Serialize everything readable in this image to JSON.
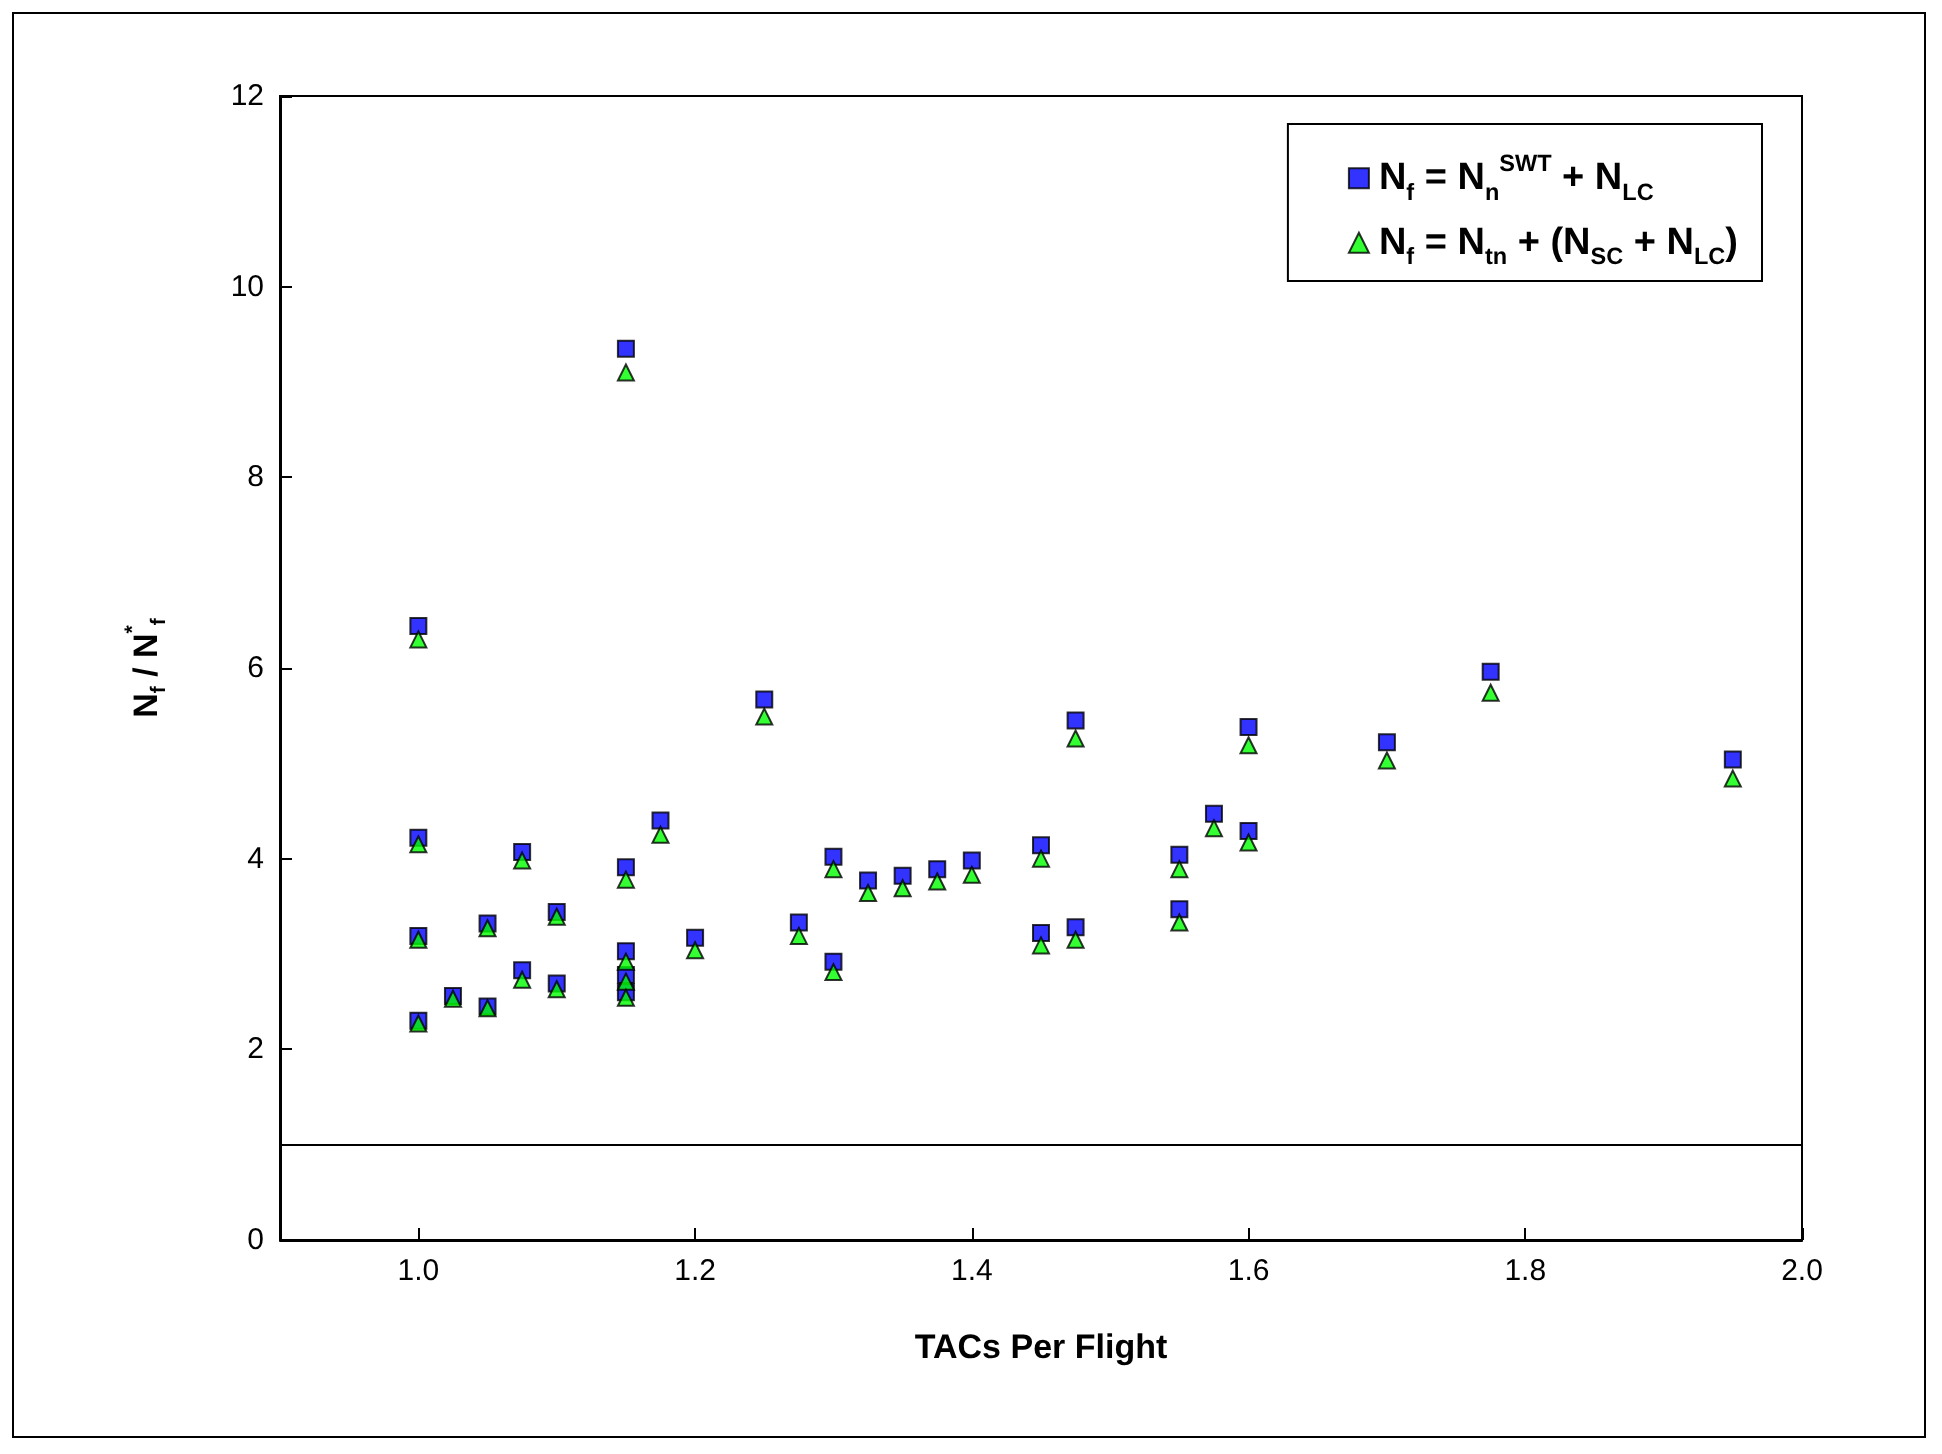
{
  "chart_data": {
    "type": "scatter",
    "xlabel": "TACs Per Flight",
    "ylabel": "N$_{f}$ / N$^{*}$$_{f}$",
    "xlim": [
      0.9,
      2.0
    ],
    "xticks": [
      {
        "value": 1.0,
        "label": "1.0"
      },
      {
        "value": 1.2,
        "label": "1.2"
      },
      {
        "value": 1.4,
        "label": "1.4"
      },
      {
        "value": 1.6,
        "label": "1.6"
      },
      {
        "value": 1.8,
        "label": "1.8"
      },
      {
        "value": 2.0,
        "label": "2.0"
      }
    ],
    "ylim": [
      0,
      12
    ],
    "yticks": [
      0,
      2,
      4,
      6,
      8,
      10,
      12
    ],
    "x": [
      1.0,
      1.0,
      1.0,
      1.0,
      1.025,
      1.05,
      1.05,
      1.075,
      1.075,
      1.1,
      1.1,
      1.15,
      1.15,
      1.15,
      1.15,
      1.15,
      1.175,
      1.2,
      1.25,
      1.275,
      1.3,
      1.3,
      1.325,
      1.35,
      1.375,
      1.4,
      1.45,
      1.45,
      1.475,
      1.475,
      1.55,
      1.55,
      1.575,
      1.6,
      1.6,
      1.7,
      1.775,
      1.95
    ],
    "series": [
      {
        "name": "N$_{f}$ = N$_{n}$$^{SWT}$ + N$_{LC}$",
        "color": "#0000ff",
        "marker": "square",
        "values": [
          6.44,
          4.22,
          3.19,
          2.3,
          2.56,
          3.32,
          2.45,
          4.07,
          2.83,
          3.44,
          2.69,
          9.35,
          3.91,
          3.03,
          2.78,
          2.6,
          4.4,
          3.17,
          5.67,
          3.33,
          4.02,
          2.92,
          3.77,
          3.82,
          3.89,
          3.98,
          4.14,
          3.22,
          5.45,
          3.28,
          4.04,
          3.47,
          4.47,
          5.38,
          4.29,
          5.22,
          5.96,
          5.04
        ]
      },
      {
        "name": "N$_{f}$ = N$_{tn}$ + (N$_{SC}$ + N$_{LC}$)",
        "color": "#00ff00",
        "marker": "triangle",
        "values": [
          6.3,
          4.15,
          3.15,
          2.27,
          2.53,
          3.27,
          2.43,
          3.98,
          2.73,
          3.39,
          2.63,
          9.1,
          3.78,
          2.92,
          2.71,
          2.54,
          4.25,
          3.04,
          5.49,
          3.19,
          3.89,
          2.81,
          3.64,
          3.69,
          3.76,
          3.83,
          4.0,
          3.09,
          5.26,
          3.15,
          3.89,
          3.33,
          4.32,
          5.19,
          4.17,
          5.03,
          5.74,
          4.84
        ]
      }
    ],
    "ref_lines": [
      {
        "axis": "y",
        "value": 1,
        "color": "#000000"
      }
    ],
    "legend": "top right",
    "grid": false
  }
}
